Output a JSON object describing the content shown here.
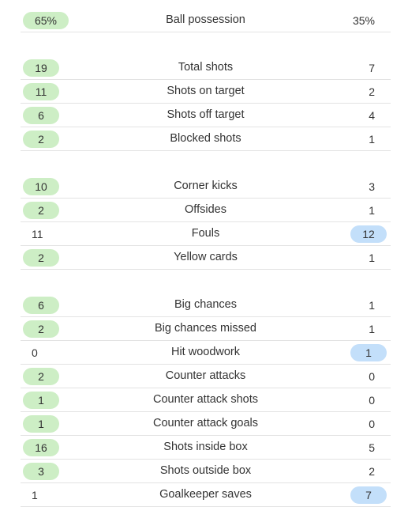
{
  "colors": {
    "home_highlight": "#cdeec5",
    "away_highlight": "#c3dffa",
    "divider": "#e3e3e3",
    "text": "#333333"
  },
  "groups": [
    {
      "rows": [
        {
          "name": "Ball possession",
          "home": "65%",
          "away": "35%",
          "leader": "home"
        }
      ]
    },
    {
      "rows": [
        {
          "name": "Total shots",
          "home": "19",
          "away": "7",
          "leader": "home"
        },
        {
          "name": "Shots on target",
          "home": "11",
          "away": "2",
          "leader": "home"
        },
        {
          "name": "Shots off target",
          "home": "6",
          "away": "4",
          "leader": "home"
        },
        {
          "name": "Blocked shots",
          "home": "2",
          "away": "1",
          "leader": "home"
        }
      ]
    },
    {
      "rows": [
        {
          "name": "Corner kicks",
          "home": "10",
          "away": "3",
          "leader": "home"
        },
        {
          "name": "Offsides",
          "home": "2",
          "away": "1",
          "leader": "home"
        },
        {
          "name": "Fouls",
          "home": "11",
          "away": "12",
          "leader": "away"
        },
        {
          "name": "Yellow cards",
          "home": "2",
          "away": "1",
          "leader": "home"
        }
      ]
    },
    {
      "rows": [
        {
          "name": "Big chances",
          "home": "6",
          "away": "1",
          "leader": "home"
        },
        {
          "name": "Big chances missed",
          "home": "2",
          "away": "1",
          "leader": "home"
        },
        {
          "name": "Hit woodwork",
          "home": "0",
          "away": "1",
          "leader": "away"
        },
        {
          "name": "Counter attacks",
          "home": "2",
          "away": "0",
          "leader": "home"
        },
        {
          "name": "Counter attack shots",
          "home": "1",
          "away": "0",
          "leader": "home"
        },
        {
          "name": "Counter attack goals",
          "home": "1",
          "away": "0",
          "leader": "home"
        },
        {
          "name": "Shots inside box",
          "home": "16",
          "away": "5",
          "leader": "home"
        },
        {
          "name": "Shots outside box",
          "home": "3",
          "away": "2",
          "leader": "home"
        },
        {
          "name": "Goalkeeper saves",
          "home": "1",
          "away": "7",
          "leader": "away"
        }
      ]
    }
  ]
}
